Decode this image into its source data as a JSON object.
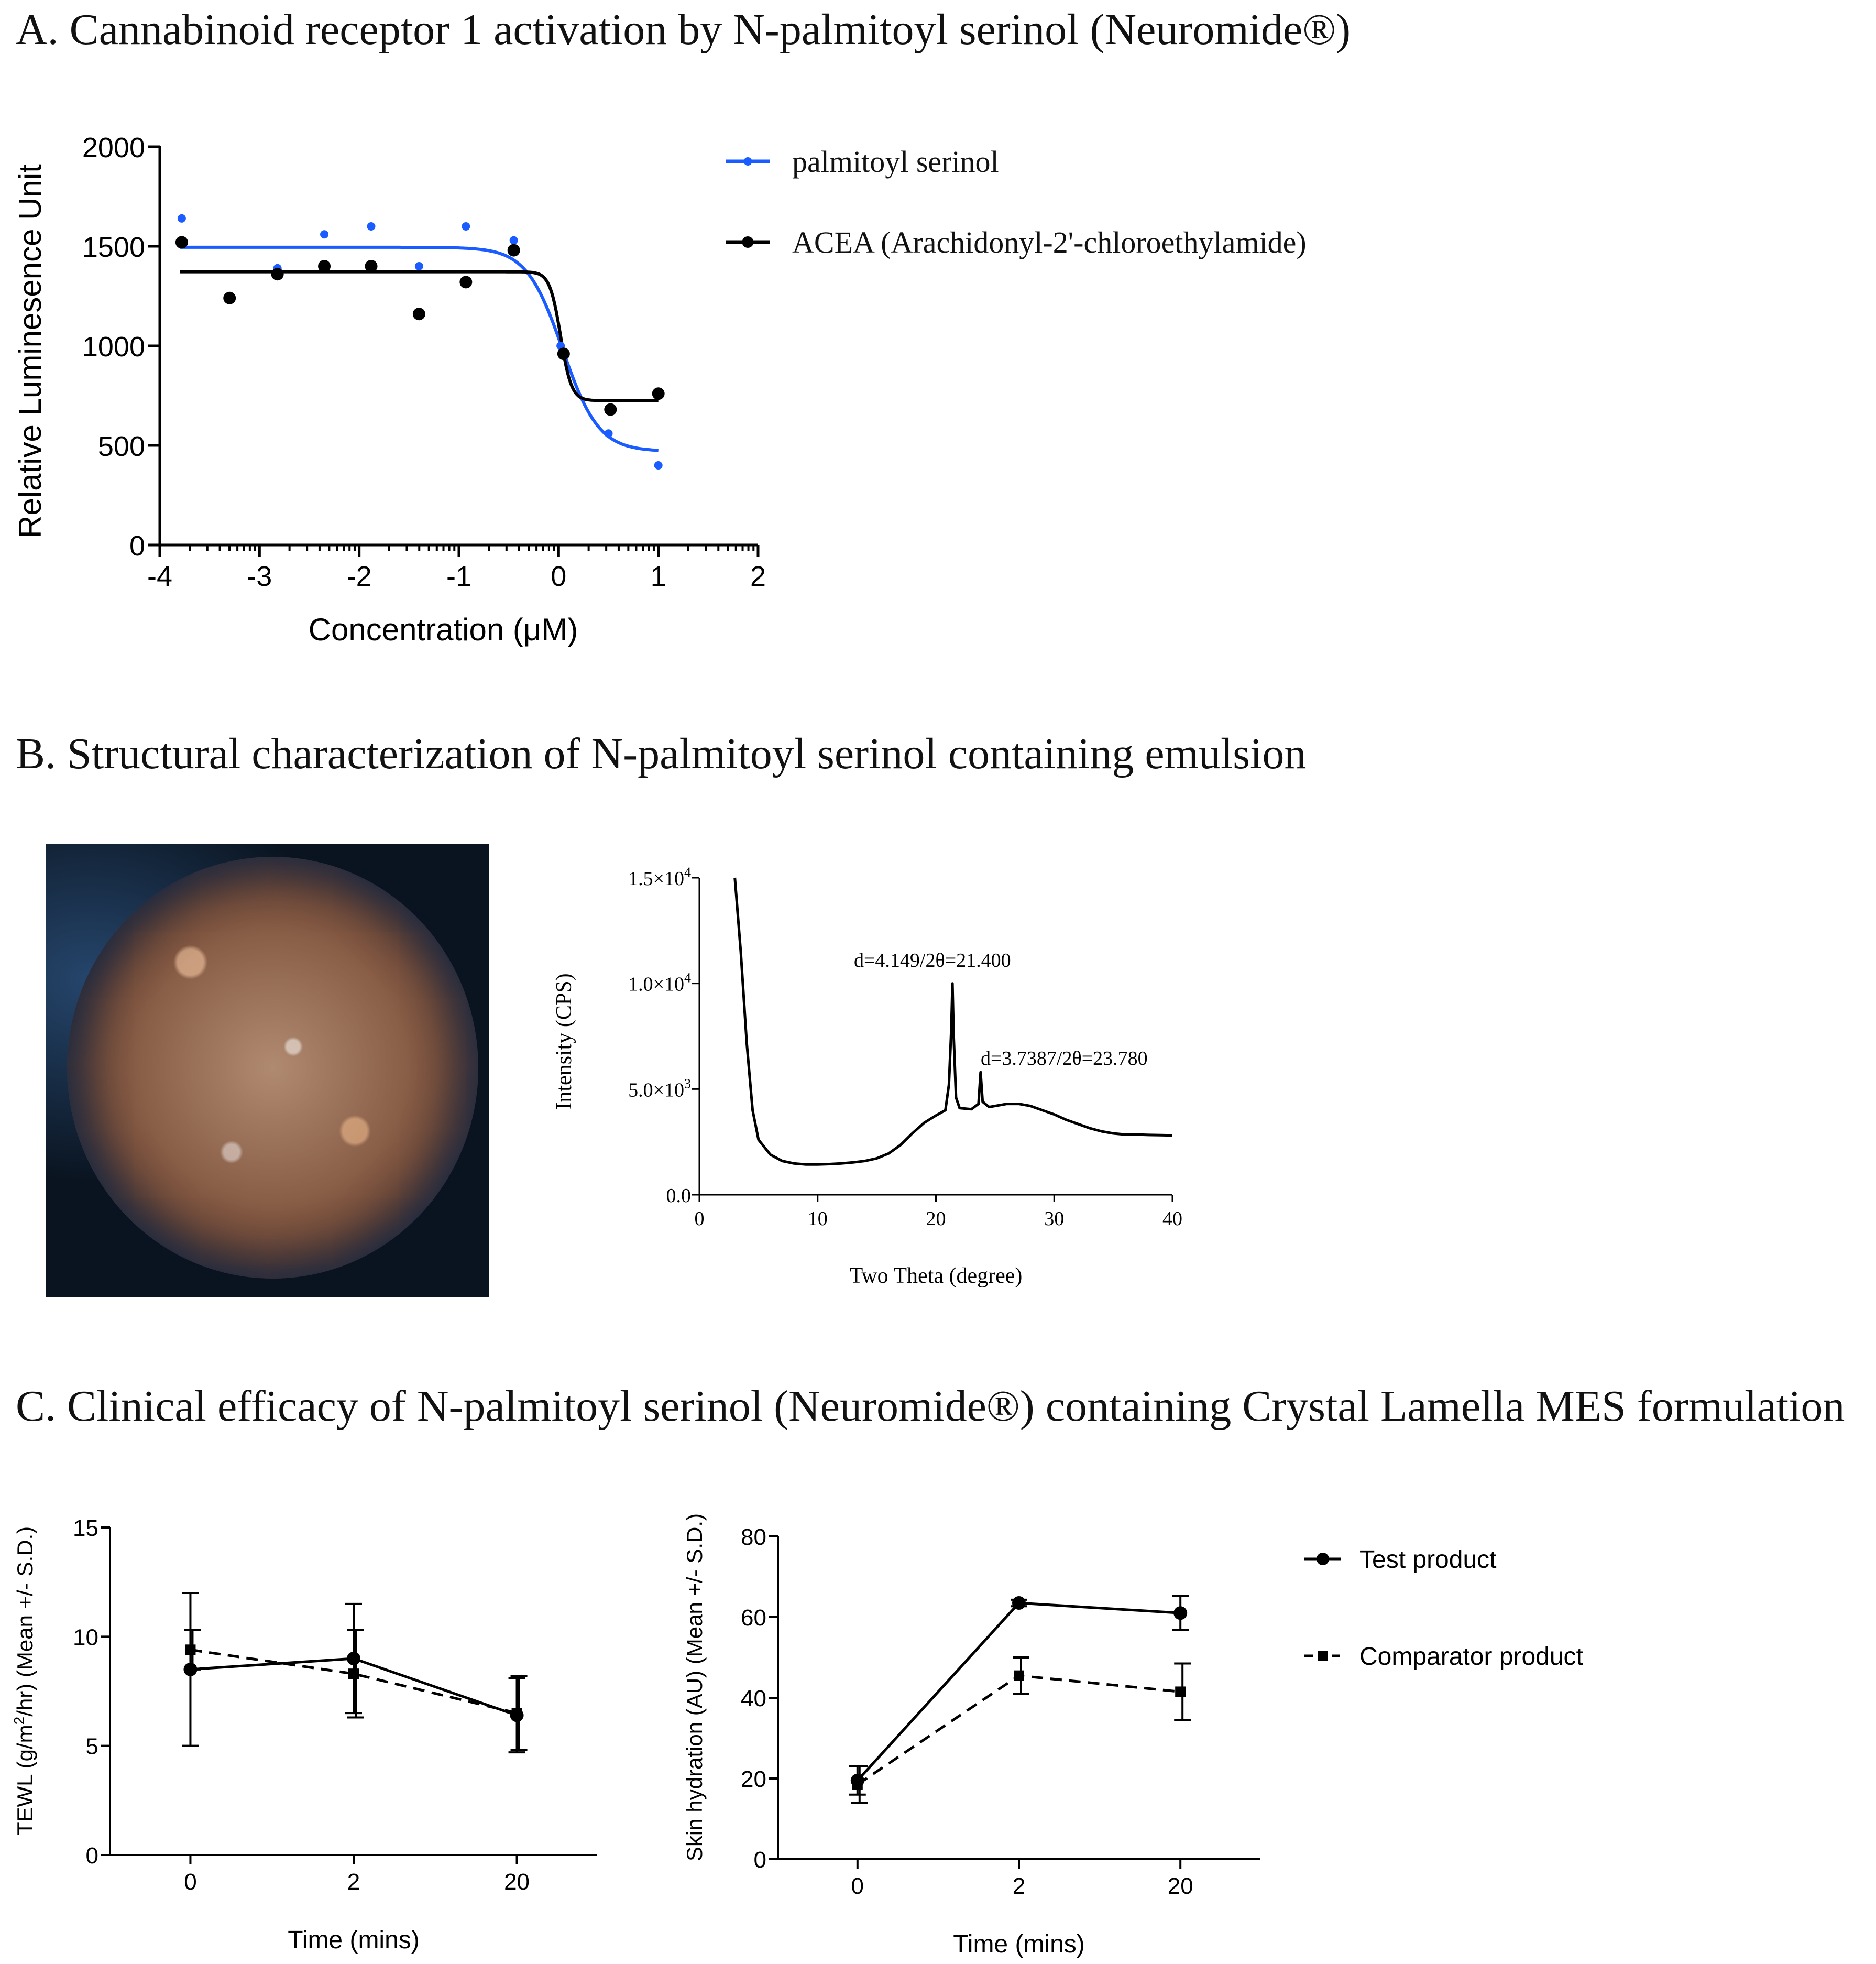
{
  "sections": {
    "a_title": "A. Cannabinoid receptor 1 activation by N-palmitoyl serinol (Neuromide®)",
    "b_title": "B. Structural characterization of N-palmitoyl serinol containing emulsion",
    "c_title": "C. Clinical efficacy of N-palmitoyl serinol (Neuromide®) containing Crystal Lamella MES formulation"
  },
  "colors": {
    "blue": "#1a5cff",
    "black": "#000000"
  },
  "chart_data": [
    {
      "id": "cb1",
      "type": "scatter",
      "title": "A. Cannabinoid receptor 1 activation by N-palmitoyl serinol (Neuromide®)",
      "xlabel": "Concentration (μM)",
      "ylabel": "Relative Luminesence Unit",
      "xlim": [
        -4,
        2
      ],
      "ylim": [
        0,
        2000
      ],
      "xticks": [
        "-4",
        "-3",
        "-2",
        "-1",
        "0",
        "1",
        "2"
      ],
      "yticks": [
        "0",
        "500",
        "1000",
        "1500",
        "2000"
      ],
      "legend": [
        "palmitoyl serinol",
        "ACEA (Arachidonyl-2'-chloroethylamide)"
      ],
      "series": [
        {
          "name": "palmitoyl serinol",
          "color": "#1a5cff",
          "points": [
            [
              -3.78,
              1640
            ],
            [
              -3.3,
              1240
            ],
            [
              -2.82,
              1390
            ],
            [
              -2.35,
              1560
            ],
            [
              -1.88,
              1600
            ],
            [
              -1.4,
              1400
            ],
            [
              -0.93,
              1600
            ],
            [
              -0.45,
              1530
            ],
            [
              0.02,
              1000
            ],
            [
              0.5,
              560
            ],
            [
              1.0,
              400
            ]
          ],
          "fit": {
            "top": 1495,
            "bottom": 470,
            "logEC50": 0.04,
            "hill": -2.4
          }
        },
        {
          "name": "ACEA (Arachidonyl-2'-chloroethylamide)",
          "color": "#000000",
          "points": [
            [
              -3.78,
              1520
            ],
            [
              -3.3,
              1240
            ],
            [
              -2.82,
              1360
            ],
            [
              -2.35,
              1400
            ],
            [
              -1.88,
              1400
            ],
            [
              -1.4,
              1160
            ],
            [
              -0.93,
              1320
            ],
            [
              -0.45,
              1480
            ],
            [
              0.05,
              960
            ],
            [
              0.52,
              680
            ],
            [
              1.0,
              760
            ]
          ],
          "fit": {
            "top": 1372,
            "bottom": 725,
            "logEC50": 0.02,
            "hill": -8
          }
        }
      ]
    },
    {
      "id": "xrd",
      "type": "line",
      "xlabel": "Two Theta (degree)",
      "ylabel": "Intensity (CPS)",
      "xlim": [
        0,
        40
      ],
      "ylim": [
        0,
        15000
      ],
      "xticks": [
        "0",
        "10",
        "20",
        "30",
        "40"
      ],
      "yticks": [
        {
          "mant": "0.0",
          "exp": ""
        },
        {
          "mant": "5.0×10",
          "exp": "3"
        },
        {
          "mant": "1.0×10",
          "exp": "4"
        },
        {
          "mant": "1.5×10",
          "exp": "4"
        }
      ],
      "annotations": [
        "d=4.149/2θ=21.400",
        "d=3.7387/2θ=23.780"
      ],
      "points": [
        [
          3.0,
          15000
        ],
        [
          3.5,
          11500
        ],
        [
          4.0,
          7200
        ],
        [
          4.5,
          4000
        ],
        [
          5.0,
          2600
        ],
        [
          6.0,
          1900
        ],
        [
          7.0,
          1600
        ],
        [
          8.0,
          1480
        ],
        [
          9.0,
          1430
        ],
        [
          10.0,
          1430
        ],
        [
          11.0,
          1450
        ],
        [
          12.0,
          1480
        ],
        [
          13.0,
          1530
        ],
        [
          14.0,
          1600
        ],
        [
          15.0,
          1720
        ],
        [
          16.0,
          1950
        ],
        [
          17.0,
          2350
        ],
        [
          18.0,
          2900
        ],
        [
          19.0,
          3400
        ],
        [
          20.0,
          3750
        ],
        [
          20.8,
          4000
        ],
        [
          21.1,
          5200
        ],
        [
          21.3,
          7800
        ],
        [
          21.4,
          10000
        ],
        [
          21.5,
          7500
        ],
        [
          21.7,
          4600
        ],
        [
          22.0,
          4100
        ],
        [
          23.0,
          4050
        ],
        [
          23.6,
          4300
        ],
        [
          23.78,
          5800
        ],
        [
          23.95,
          4400
        ],
        [
          24.5,
          4150
        ],
        [
          25.0,
          4200
        ],
        [
          26.0,
          4300
        ],
        [
          27.0,
          4300
        ],
        [
          28.0,
          4200
        ],
        [
          29.0,
          4000
        ],
        [
          30.0,
          3800
        ],
        [
          31.0,
          3550
        ],
        [
          32.0,
          3350
        ],
        [
          33.0,
          3150
        ],
        [
          34.0,
          3000
        ],
        [
          35.0,
          2900
        ],
        [
          36.0,
          2850
        ],
        [
          37.0,
          2850
        ],
        [
          38.0,
          2830
        ],
        [
          39.0,
          2820
        ],
        [
          40.0,
          2810
        ]
      ]
    },
    {
      "id": "tewl",
      "type": "line",
      "xlabel": "Time (mins)",
      "ylabel": "TEWL (g/m2/hr) (Mean +/- S.D.)",
      "ylabel_parts": [
        "TEWL (g/m",
        "2",
        "/hr) (Mean +/- S.D.)"
      ],
      "categories": [
        "0",
        "2",
        "20"
      ],
      "ylim": [
        0,
        15
      ],
      "yticks": [
        "0",
        "5",
        "10",
        "15"
      ],
      "series": [
        {
          "name": "Test product",
          "style": "solid",
          "marker": "circle",
          "values": [
            8.5,
            9.0,
            6.4
          ],
          "sd": [
            3.5,
            2.5,
            1.7
          ]
        },
        {
          "name": "Comparator product",
          "style": "dashed",
          "marker": "square",
          "values": [
            9.4,
            8.3,
            6.5
          ],
          "sd": [
            0.9,
            2.0,
            1.7
          ]
        }
      ]
    },
    {
      "id": "hydration",
      "type": "line",
      "xlabel": "Time (mins)",
      "ylabel": "Skin hydration (AU) (Mean +/- S.D.)",
      "categories": [
        "0",
        "2",
        "20"
      ],
      "ylim": [
        0,
        80
      ],
      "yticks": [
        "0",
        "20",
        "40",
        "60",
        "80"
      ],
      "legend": [
        "Test product",
        "Comparator product"
      ],
      "series": [
        {
          "name": "Test product",
          "style": "solid",
          "marker": "circle",
          "values": [
            19.5,
            63.5,
            61
          ],
          "sd": [
            3.5,
            0.8,
            4.2
          ]
        },
        {
          "name": "Comparator product",
          "style": "dashed",
          "marker": "square",
          "values": [
            18.5,
            45.5,
            41.5
          ],
          "sd": [
            4.5,
            4.5,
            7.0
          ]
        }
      ]
    }
  ]
}
